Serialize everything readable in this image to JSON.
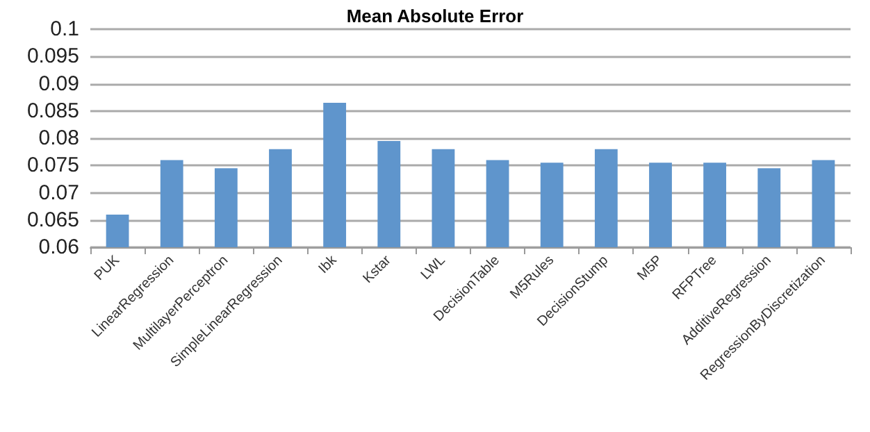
{
  "chart_data": {
    "type": "bar",
    "title": "Mean Absolute Error",
    "categories": [
      "PUK",
      "LinearRegression",
      "MultilayerPerceptron",
      "SimpleLinearRegression",
      "Ibk",
      "Kstar",
      "LWL",
      "DecisionTable",
      "M5Rules",
      "DecisionStump",
      "M5P",
      "RFPTree",
      "AdditiveRegression",
      "RegressionByDiscretization"
    ],
    "values": [
      0.066,
      0.076,
      0.0745,
      0.078,
      0.0865,
      0.0795,
      0.078,
      0.076,
      0.0755,
      0.078,
      0.0755,
      0.0755,
      0.0745,
      0.076
    ],
    "color": "#5f95cc",
    "ylim": [
      0.06,
      0.1
    ],
    "yticks": [
      0.06,
      0.065,
      0.07,
      0.075,
      0.08,
      0.085,
      0.09,
      0.095,
      0.1
    ],
    "grid": "y"
  }
}
